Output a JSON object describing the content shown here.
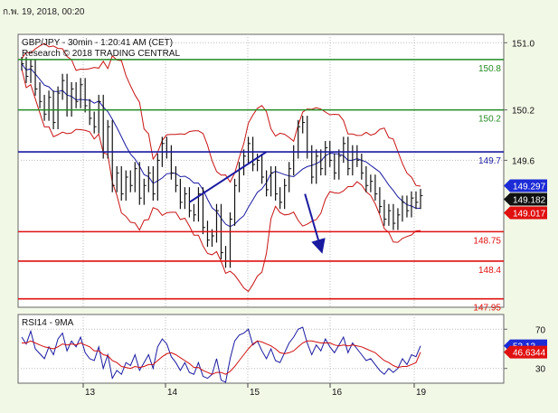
{
  "header": {
    "date_text": "ก.พ. 19, 2018, 00:20"
  },
  "chart_data": [
    {
      "type": "line",
      "title": "GBP/JPY - 30min - 1:20:41 AM (CET)",
      "subtitle": "Research © 2018 TRADING CENTRAL",
      "ylim": [
        147.85,
        151.1
      ],
      "y_ticks": [
        151.0,
        150.2,
        149.6
      ],
      "y_tick_labels": [
        "151.0",
        "150.2",
        "149.6"
      ],
      "x_ticks": [
        "13",
        "14",
        "15",
        "16",
        "19"
      ],
      "levels": [
        {
          "value": 150.8,
          "label": "150.8",
          "color": "#228b22"
        },
        {
          "value": 150.2,
          "label": "150.2",
          "color": "#228b22"
        },
        {
          "value": 149.7,
          "label": "149.7",
          "color": "#1a1aa0"
        },
        {
          "value": 148.75,
          "label": "148.75",
          "color": "#e01010"
        },
        {
          "value": 148.4,
          "label": "148.4",
          "color": "#e01010"
        },
        {
          "value": 147.95,
          "label": "147.95",
          "color": "#e01010"
        }
      ],
      "price_badges": [
        {
          "value": 149.297,
          "label": "149.297",
          "color": "#1c2bd6"
        },
        {
          "value": 149.182,
          "label": "149.182",
          "color": "#111111"
        },
        {
          "value": 149.017,
          "label": "149.017",
          "color": "#e01010"
        }
      ],
      "price_series": [
        150.75,
        150.6,
        150.72,
        150.45,
        150.3,
        150.15,
        150.35,
        150.05,
        150.4,
        150.55,
        150.2,
        150.45,
        150.3,
        150.5,
        150.25,
        150.1,
        150.0,
        150.3,
        149.7,
        150.0,
        149.3,
        149.45,
        149.2,
        149.4,
        149.3,
        149.5,
        149.15,
        149.3,
        149.45,
        149.2,
        149.6,
        149.8,
        149.7,
        149.45,
        149.3,
        149.1,
        149.2,
        149.0,
        148.95,
        149.2,
        148.8,
        148.65,
        148.7,
        149.0,
        148.5,
        148.4,
        148.9,
        149.3,
        149.5,
        149.65,
        149.8,
        149.55,
        149.6,
        149.4,
        149.25,
        149.45,
        149.2,
        149.1,
        149.3,
        149.5,
        149.7,
        150.0,
        150.05,
        149.7,
        149.4,
        149.65,
        149.5,
        149.75,
        149.6,
        149.45,
        149.65,
        149.8,
        149.5,
        149.7,
        149.6,
        149.45,
        149.3,
        149.35,
        149.2,
        149.05,
        148.9,
        149.0,
        148.85,
        148.95,
        149.1,
        149.0,
        149.15,
        149.1,
        149.18
      ],
      "trendlines": [
        {
          "from": {
            "t": 37,
            "value": 149.1
          },
          "to": {
            "t": 54,
            "value": 149.7
          },
          "color": "#1a1aa0",
          "arrow": false
        },
        {
          "from": {
            "t": 62.5,
            "value": 149.2
          },
          "to": {
            "t": 66,
            "value": 148.55
          },
          "color": "#1a1aa0",
          "arrow": true
        }
      ]
    },
    {
      "type": "line",
      "title": "RSI14 - 9MA",
      "ylim": [
        15,
        85
      ],
      "y_ticks": [
        70,
        30
      ],
      "y_tick_labels": [
        "70",
        "30"
      ],
      "series": [
        {
          "name": "RSI14",
          "color": "#1a1aa0",
          "values": [
            62,
            55,
            68,
            50,
            45,
            40,
            52,
            44,
            60,
            66,
            48,
            58,
            52,
            62,
            46,
            40,
            38,
            52,
            30,
            44,
            20,
            28,
            24,
            36,
            33,
            44,
            28,
            36,
            44,
            30,
            52,
            60,
            55,
            42,
            36,
            28,
            36,
            26,
            24,
            36,
            22,
            20,
            24,
            40,
            18,
            16,
            40,
            58,
            64,
            66,
            70,
            54,
            58,
            48,
            40,
            50,
            38,
            36,
            46,
            56,
            62,
            70,
            72,
            56,
            44,
            54,
            48,
            60,
            52,
            46,
            54,
            62,
            46,
            56,
            50,
            44,
            38,
            40,
            34,
            28,
            24,
            30,
            26,
            30,
            40,
            34,
            44,
            42,
            53
          ]
        },
        {
          "name": "9MA",
          "color": "#d01010",
          "values": [
            56,
            56,
            58,
            56,
            54,
            52,
            51,
            50,
            52,
            55,
            54,
            55,
            54,
            56,
            54,
            52,
            48,
            48,
            44,
            43,
            38,
            36,
            32,
            31,
            30,
            32,
            31,
            32,
            34,
            34,
            38,
            42,
            45,
            46,
            44,
            41,
            38,
            35,
            31,
            31,
            28,
            26,
            24,
            26,
            26,
            24,
            27,
            32,
            38,
            44,
            50,
            55,
            58,
            57,
            55,
            53,
            50,
            46,
            45,
            46,
            48,
            52,
            56,
            58,
            58,
            57,
            56,
            56,
            56,
            54,
            53,
            54,
            53,
            54,
            53,
            52,
            50,
            48,
            46,
            42,
            38,
            36,
            33,
            31,
            32,
            32,
            34,
            36,
            46.6344
          ]
        }
      ],
      "value_badges": [
        {
          "value": 53.13,
          "label": "53.13",
          "color": "#1c2bd6"
        },
        {
          "value": 46.6344,
          "label": "46.6344",
          "color": "#e01010"
        }
      ]
    }
  ]
}
